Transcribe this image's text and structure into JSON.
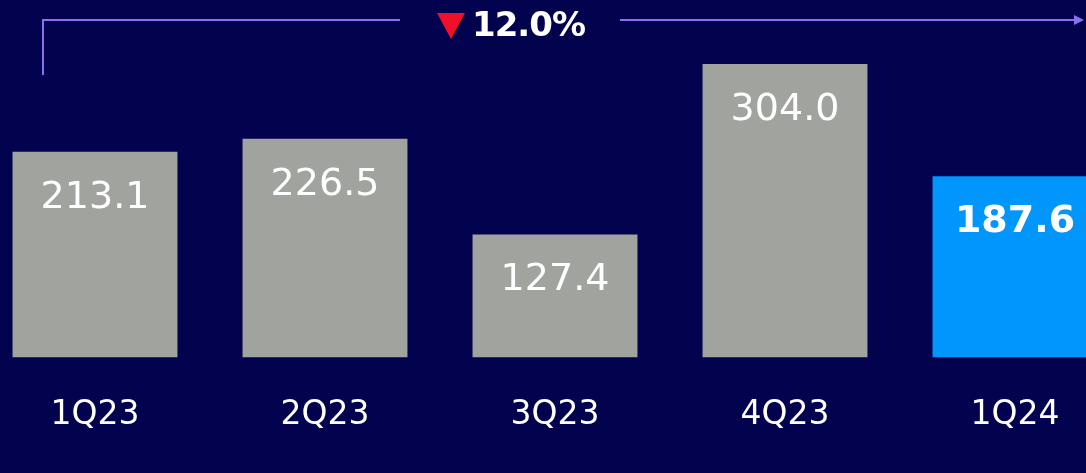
{
  "chart_data": {
    "type": "bar",
    "categories": [
      "1Q23",
      "2Q23",
      "3Q23",
      "4Q23",
      "1Q24"
    ],
    "values": [
      213.1,
      226.5,
      127.4,
      304.0,
      187.6
    ],
    "colors": [
      "#a1a39e",
      "#a1a39e",
      "#a1a39e",
      "#a1a39e",
      "#0096fc"
    ],
    "value_labels": [
      "213.1",
      "226.5",
      "127.4",
      "304.0",
      "187.6"
    ],
    "annotations": [
      "12.0%"
    ],
    "grid": false,
    "legend": false
  }
}
